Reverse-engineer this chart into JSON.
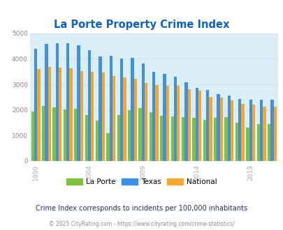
{
  "title": "La Porte Property Crime Index",
  "years": [
    1999,
    2000,
    2001,
    2002,
    2003,
    2004,
    2005,
    2006,
    2007,
    2008,
    2009,
    2010,
    2011,
    2012,
    2013,
    2014,
    2015,
    2016,
    2017,
    2018,
    2019,
    2020,
    2021
  ],
  "la_porte": [
    1950,
    2170,
    2100,
    2010,
    2040,
    1800,
    1580,
    1100,
    1800,
    2000,
    2080,
    1920,
    1780,
    1750,
    1720,
    1680,
    1620,
    1700,
    1720,
    1500,
    1310,
    1460,
    1460
  ],
  "texas": [
    4400,
    4580,
    4610,
    4620,
    4520,
    4330,
    4100,
    4110,
    4010,
    4040,
    3810,
    3490,
    3400,
    3290,
    3090,
    2880,
    2780,
    2610,
    2570,
    2420,
    2410,
    2400,
    2410
  ],
  "national": [
    3610,
    3680,
    3660,
    3620,
    3520,
    3500,
    3460,
    3340,
    3280,
    3210,
    3050,
    2980,
    2960,
    2950,
    2810,
    2760,
    2510,
    2490,
    2370,
    2250,
    2200,
    2130,
    2130
  ],
  "bar_colors": {
    "la_porte": "#80c040",
    "texas": "#4090e0",
    "national": "#f0a830"
  },
  "plot_bg": "#dceef5",
  "title_color": "#1060c0",
  "ylabel_max": 5000,
  "yticks": [
    0,
    1000,
    2000,
    3000,
    4000,
    5000
  ],
  "subtitle": "Crime Index corresponds to incidents per 100,000 inhabitants",
  "footer": "© 2025 CityRating.com - https://www.cityrating.com/crime-statistics/",
  "subtitle_color": "#203060",
  "footer_color": "#8090a0",
  "legend_labels": [
    "La Porte",
    "Texas",
    "National"
  ],
  "bar_width": 0.28,
  "grid_color": "#c8dde8",
  "shown_years": [
    1999,
    2004,
    2009,
    2014,
    2019
  ]
}
